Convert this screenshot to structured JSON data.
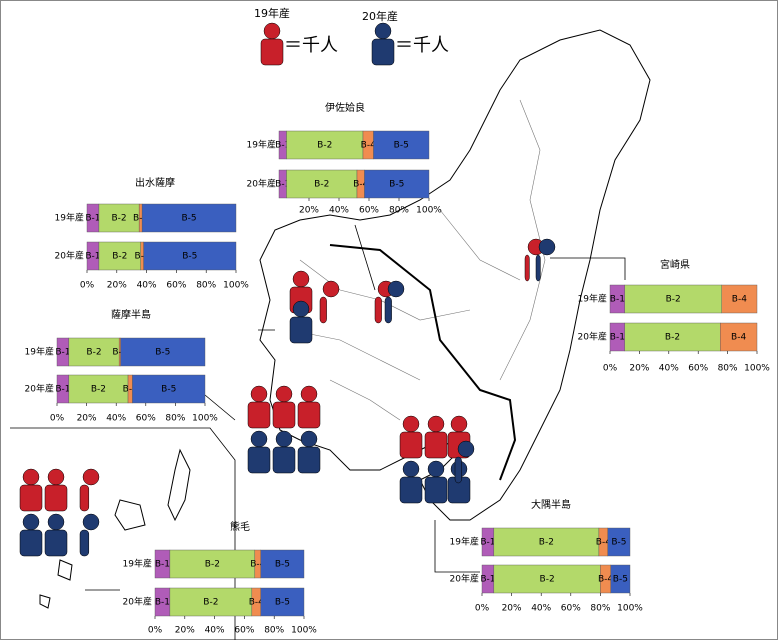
{
  "legend": [
    {
      "year": "19年産",
      "unit": "＝千人"
    },
    {
      "year": "20年産",
      "unit": "＝千人"
    }
  ],
  "charts": [
    {
      "title": "伊佐姶良",
      "rows": [
        "19年産",
        "20年産"
      ],
      "segments": [
        "B-1",
        "B-2",
        "B-4",
        "B-5"
      ],
      "colors": [
        "#b05cb8",
        "#b3d96a",
        "#f08c50",
        "#3a5fbf"
      ],
      "values": [
        [
          5,
          51,
          7,
          37
        ],
        [
          5,
          47,
          5,
          43
        ]
      ],
      "xticks": [
        {
          "value": 20,
          "label": "20%"
        },
        {
          "value": 40,
          "label": "40%"
        },
        {
          "value": 60,
          "label": "60%"
        },
        {
          "value": 80,
          "label": "80%"
        },
        {
          "value": 100,
          "label": "100%"
        }
      ]
    },
    {
      "title": "出水薩摩",
      "rows": [
        "19年産",
        "20年産"
      ],
      "segments": [
        "B-1",
        "B-2",
        "B-4",
        "B-5"
      ],
      "colors": [
        "#b05cb8",
        "#b3d96a",
        "#f08c50",
        "#3a5fbf"
      ],
      "values": [
        [
          8,
          27,
          2,
          63
        ],
        [
          8,
          28,
          2,
          62
        ]
      ],
      "xticks": [
        {
          "value": 0,
          "label": "0%"
        },
        {
          "value": 20,
          "label": "20%"
        },
        {
          "value": 40,
          "label": "40%"
        },
        {
          "value": 60,
          "label": "60%"
        },
        {
          "value": 80,
          "label": "80%"
        },
        {
          "value": 100,
          "label": "100%"
        }
      ]
    },
    {
      "title": "宮崎県",
      "rows": [
        "19年産",
        "20年産"
      ],
      "segments": [
        "B-1",
        "B-2",
        "B-4"
      ],
      "colors": [
        "#b05cb8",
        "#b3d96a",
        "#f08c50"
      ],
      "values": [
        [
          10,
          66,
          24
        ],
        [
          10,
          65,
          25
        ]
      ],
      "xticks": [
        {
          "value": 0,
          "label": "0%"
        },
        {
          "value": 20,
          "label": "20%"
        },
        {
          "value": 40,
          "label": "40%"
        },
        {
          "value": 60,
          "label": "60%"
        },
        {
          "value": 80,
          "label": "80%"
        },
        {
          "value": 100,
          "label": "100%"
        }
      ]
    },
    {
      "title": "薩摩半島",
      "rows": [
        "19年産",
        "20年産"
      ],
      "segments": [
        "B-1",
        "B-2",
        "B-4",
        "B-5"
      ],
      "colors": [
        "#b05cb8",
        "#b3d96a",
        "#f08c50",
        "#3a5fbf"
      ],
      "values": [
        [
          8,
          34,
          1,
          57
        ],
        [
          8,
          40,
          3,
          49
        ]
      ],
      "xticks": [
        {
          "value": 0,
          "label": "0%"
        },
        {
          "value": 20,
          "label": "20%"
        },
        {
          "value": 40,
          "label": "40%"
        },
        {
          "value": 60,
          "label": "60%"
        },
        {
          "value": 80,
          "label": "80%"
        },
        {
          "value": 100,
          "label": "100%"
        }
      ]
    },
    {
      "title": "熊毛",
      "rows": [
        "19年産",
        "20年産"
      ],
      "segments": [
        "B-1",
        "B-2",
        "B-4",
        "B-5"
      ],
      "colors": [
        "#b05cb8",
        "#b3d96a",
        "#f08c50",
        "#3a5fbf"
      ],
      "values": [
        [
          10,
          57,
          4,
          29
        ],
        [
          10,
          55,
          6,
          29
        ]
      ],
      "xticks": [
        {
          "value": 0,
          "label": "0%"
        },
        {
          "value": 20,
          "label": "20%"
        },
        {
          "value": 40,
          "label": "40%"
        },
        {
          "value": 60,
          "label": "60%"
        },
        {
          "value": 80,
          "label": "80%"
        },
        {
          "value": 100,
          "label": "100%"
        }
      ]
    },
    {
      "title": "大隅半島",
      "rows": [
        "19年産",
        "20年産"
      ],
      "segments": [
        "B-1",
        "B-2",
        "B-4",
        "B-5"
      ],
      "colors": [
        "#b05cb8",
        "#b3d96a",
        "#f08c50",
        "#3a5fbf"
      ],
      "values": [
        [
          8,
          71,
          6,
          15
        ],
        [
          8,
          72,
          7,
          13
        ]
      ],
      "xticks": [
        {
          "value": 0,
          "label": "0%"
        },
        {
          "value": 20,
          "label": "20%"
        },
        {
          "value": 40,
          "label": "40%"
        },
        {
          "value": 60,
          "label": "60%"
        },
        {
          "value": 80,
          "label": "80%"
        },
        {
          "value": 100,
          "label": "100%"
        }
      ]
    }
  ]
}
